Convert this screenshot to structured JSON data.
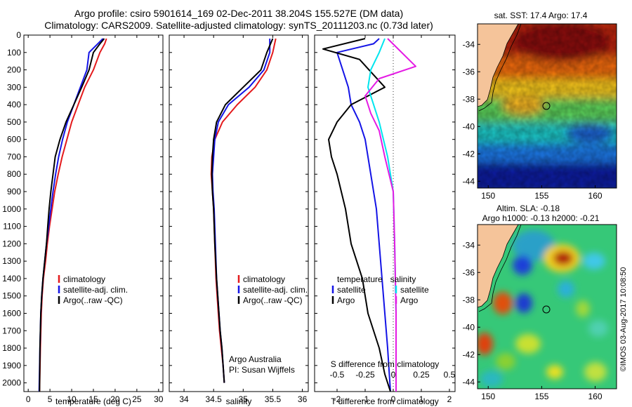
{
  "header": {
    "line1": "Argo profile: csiro 5901614_169 02-Dec-2011 38.204S 155.527E (DM data)",
    "line2": "Climatology: CARS2009. Satellite-adjusted climatology: synTS_20111203.nc (0.73d later)"
  },
  "footer": {
    "credit": "Argo Australia",
    "pi": "PI: Susan Wijffels",
    "stamp": "©IMOS 03-Aug-2017 10:08:50"
  },
  "colors": {
    "climatology": "#e41a1c",
    "satellite": "#1414e6",
    "argo": "#000000",
    "satellite_salinity": "#00e5ee",
    "argo_salinity": "#e41ae4",
    "land": "#f5c49a",
    "coast": "#000000"
  },
  "chart_data": [
    {
      "type": "line",
      "name": "temperature-panel",
      "xlabel": "temperature (deg C)",
      "xlim": [
        -1,
        31
      ],
      "ylim": [
        2050,
        0
      ],
      "yticks": [
        0,
        100,
        200,
        300,
        400,
        500,
        600,
        700,
        800,
        900,
        1000,
        1100,
        1200,
        1300,
        1400,
        1500,
        1600,
        1700,
        1800,
        1900,
        2000
      ],
      "xticks": [
        0,
        5,
        10,
        15,
        20,
        25,
        30
      ],
      "legend": [
        "climatology",
        "satellite-adj. clim.",
        "Argo(..raw -QC)"
      ],
      "legend_position": "lower-center",
      "series": [
        {
          "name": "climatology",
          "color_key": "climatology",
          "x": [
            18.0,
            17.6,
            16.5,
            15.0,
            13.0,
            11.5,
            10.0,
            8.9,
            7.8,
            6.9,
            6.1,
            5.5,
            4.9,
            4.4,
            4.0,
            3.5,
            3.2,
            3.0,
            2.8,
            2.6
          ],
          "y": [
            20,
            50,
            100,
            200,
            300,
            400,
            500,
            600,
            700,
            800,
            900,
            1000,
            1100,
            1200,
            1300,
            1400,
            1500,
            1600,
            1800,
            2050
          ]
        },
        {
          "name": "satellite-adj. clim.",
          "color_key": "satellite",
          "x": [
            17.2,
            16.0,
            14.0,
            13.5,
            12.0,
            10.5,
            9.0,
            7.9,
            7.0,
            6.3,
            5.7,
            5.2,
            4.7,
            4.2,
            3.8,
            3.4,
            3.1,
            2.9,
            2.7,
            2.5
          ],
          "y": [
            20,
            50,
            100,
            200,
            300,
            400,
            500,
            600,
            700,
            800,
            900,
            1000,
            1100,
            1200,
            1300,
            1400,
            1500,
            1600,
            1800,
            2050
          ]
        },
        {
          "name": "Argo(..raw -QC)",
          "color_key": "argo",
          "x": [
            17.5,
            16.5,
            15.0,
            14.0,
            12.3,
            10.5,
            8.7,
            7.3,
            6.2,
            5.7,
            5.2,
            4.8,
            4.5,
            4.2,
            3.8,
            3.4,
            3.1,
            2.9,
            2.7,
            2.6
          ],
          "y": [
            20,
            50,
            100,
            200,
            300,
            400,
            500,
            600,
            700,
            800,
            900,
            1000,
            1100,
            1200,
            1300,
            1400,
            1500,
            1600,
            1800,
            2050
          ]
        }
      ]
    },
    {
      "type": "line",
      "name": "salinity-panel",
      "xlabel": "salinity",
      "xlim": [
        33.75,
        36.1
      ],
      "ylim": [
        2050,
        0
      ],
      "xticks": [
        34,
        34.5,
        35,
        35.5,
        36
      ],
      "legend": [
        "climatology",
        "satellite-adj. clim.",
        "Argo(..raw -QC)"
      ],
      "legend_position": "lower-center",
      "series": [
        {
          "name": "climatology",
          "color_key": "climatology",
          "x": [
            35.55,
            35.5,
            35.4,
            35.2,
            34.9,
            34.65,
            34.52,
            34.47,
            34.46,
            34.48,
            34.5,
            34.52,
            34.54,
            34.56,
            34.58,
            34.6,
            34.63,
            34.66,
            34.68
          ],
          "y": [
            20,
            100,
            200,
            300,
            400,
            500,
            600,
            700,
            800,
            900,
            1000,
            1200,
            1400,
            1500,
            1600,
            1700,
            1800,
            1900,
            2000
          ]
        },
        {
          "name": "satellite-adj. clim.",
          "color_key": "satellite",
          "x": [
            35.45,
            35.45,
            35.35,
            35.1,
            34.75,
            34.58,
            34.52,
            34.5,
            34.48,
            34.49,
            34.51,
            34.53,
            34.55,
            34.57,
            34.59,
            34.61,
            34.64,
            34.66,
            34.68
          ],
          "y": [
            20,
            100,
            200,
            300,
            400,
            500,
            600,
            700,
            800,
            900,
            1000,
            1200,
            1400,
            1500,
            1600,
            1700,
            1800,
            1900,
            2000
          ]
        },
        {
          "name": "Argo(..raw -QC)",
          "color_key": "argo",
          "x": [
            35.5,
            35.4,
            35.3,
            35.0,
            34.7,
            34.55,
            34.5,
            34.48,
            34.47,
            34.48,
            34.5,
            34.52,
            34.55,
            34.57,
            34.59,
            34.61,
            34.64,
            34.66,
            34.68
          ],
          "y": [
            20,
            100,
            200,
            300,
            400,
            500,
            600,
            700,
            800,
            900,
            1000,
            1200,
            1400,
            1500,
            1600,
            1700,
            1800,
            1900,
            2000
          ]
        }
      ]
    },
    {
      "type": "line",
      "name": "difference-panel",
      "xlabel_top": "S difference from climatology",
      "xlabel": "T difference from climatology",
      "xlim": [
        -2.8,
        2.2
      ],
      "ylim": [
        2050,
        0
      ],
      "xticks": [
        -2,
        -1,
        0,
        1,
        2
      ],
      "top_ticks": [
        "-0.5",
        "-0.25",
        "0",
        "0.25",
        "0.5"
      ],
      "top_ticks_at": [
        -2,
        -1,
        0,
        1,
        2
      ],
      "legend_groups": [
        {
          "title": "temperature",
          "entries": [
            "satellite",
            "Argo"
          ]
        },
        {
          "title": "salinity",
          "entries": [
            "satellite",
            "Argo"
          ]
        }
      ],
      "legend_position": "lower-center",
      "series": [
        {
          "name": "temperature satellite",
          "color_key": "satellite",
          "x": [
            -0.5,
            -0.7,
            -2.0,
            -1.8,
            -1.6,
            -1.5,
            -1.2,
            -1.0,
            -0.8,
            -0.6,
            -0.5,
            -0.4,
            -0.3,
            -0.2,
            -0.1
          ],
          "y": [
            20,
            50,
            100,
            200,
            300,
            400,
            500,
            600,
            800,
            1000,
            1200,
            1400,
            1600,
            1800,
            2050
          ]
        },
        {
          "name": "temperature Argo",
          "color_key": "argo",
          "x": [
            -1.0,
            -2.5,
            -1.2,
            -0.3,
            -1.5,
            -2.0,
            -2.3,
            -2.2,
            -2.0,
            -1.7,
            -1.5,
            -1.1,
            -0.9,
            -0.5,
            -0.3,
            -0.1
          ],
          "y": [
            20,
            80,
            140,
            300,
            400,
            500,
            600,
            700,
            800,
            1000,
            1200,
            1400,
            1600,
            1800,
            1950,
            2050
          ]
        },
        {
          "name": "salinity satellite",
          "color_key": "satellite_salinity",
          "x": [
            -0.3,
            -0.5,
            -0.8,
            -0.9,
            -0.7,
            -0.5,
            -0.2,
            0.0,
            0.05,
            0.1,
            0.1
          ],
          "y": [
            20,
            100,
            200,
            300,
            400,
            500,
            700,
            900,
            1200,
            1600,
            2050
          ]
        },
        {
          "name": "salinity Argo",
          "color_key": "argo_salinity",
          "x": [
            -0.2,
            0.8,
            -0.5,
            -1.0,
            -0.8,
            -0.5,
            -0.3,
            0.0,
            0.05,
            0.1,
            0.1
          ],
          "y": [
            20,
            180,
            250,
            350,
            450,
            550,
            700,
            900,
            1200,
            1600,
            2050
          ]
        }
      ]
    },
    {
      "type": "heatmap",
      "name": "sst-map",
      "title": "sat. SST: 17.4 Argo: 17.4",
      "xticks": [
        150,
        155,
        160
      ],
      "yticks": [
        -34,
        -36,
        -38,
        -40,
        -42,
        -44
      ],
      "xlim": [
        149,
        162
      ],
      "ylim": [
        -44.5,
        -32.5
      ],
      "argo_position": [
        155.5,
        -38.2
      ]
    },
    {
      "type": "heatmap",
      "name": "sla-map",
      "title_line1": "Altim. SLA: -0.18",
      "title_line2": "Argo h1000: -0.13 h2000: -0.21",
      "xticks": [
        150,
        155,
        160
      ],
      "yticks": [
        -34,
        -36,
        -38,
        -40,
        -42,
        -44
      ],
      "xlim": [
        149,
        162
      ],
      "ylim": [
        -44.5,
        -32.5
      ],
      "argo_position": [
        155.5,
        -38.2
      ]
    }
  ]
}
